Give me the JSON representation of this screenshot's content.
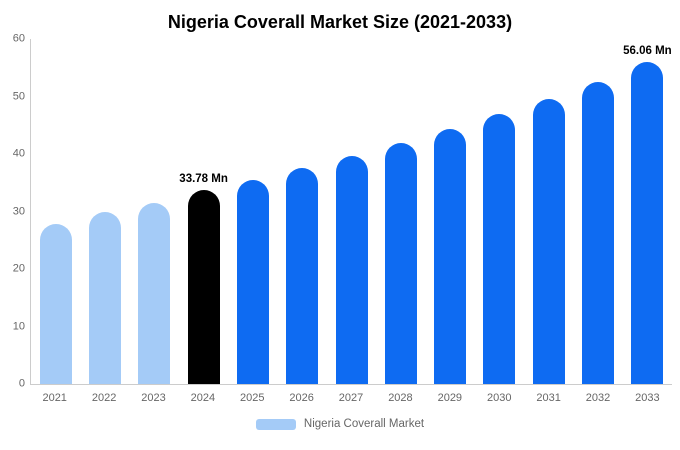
{
  "title": "Nigeria Coverall Market Size (2021-2033)",
  "legend": {
    "label": "Nigeria Coverall Market",
    "swatch_color": "#a4cbf7"
  },
  "colors": {
    "light_blue": "#a4cbf7",
    "blue": "#0e6bf2",
    "black": "#000000",
    "axis_line": "#cccccc",
    "tick_text": "#666666"
  },
  "chart_data": {
    "type": "bar",
    "title": "Nigeria Coverall Market Size (2021-2033)",
    "xlabel": "",
    "ylabel": "",
    "categories": [
      "2021",
      "2022",
      "2023",
      "2024",
      "2025",
      "2026",
      "2027",
      "2028",
      "2029",
      "2030",
      "2031",
      "2032",
      "2033"
    ],
    "values": [
      27.8,
      29.9,
      31.4,
      33.78,
      35.5,
      37.5,
      39.7,
      41.9,
      44.3,
      46.9,
      49.6,
      52.5,
      56.06
    ],
    "bar_colors": [
      "light_blue",
      "light_blue",
      "light_blue",
      "black",
      "blue",
      "blue",
      "blue",
      "blue",
      "blue",
      "blue",
      "blue",
      "blue",
      "blue"
    ],
    "point_labels": [
      "",
      "",
      "",
      "33.78 Mn",
      "",
      "",
      "",
      "",
      "",
      "",
      "",
      "",
      "56.06 Mn"
    ],
    "ylim": [
      0,
      60
    ],
    "yticks": [
      0,
      10,
      20,
      30,
      40,
      50,
      60
    ],
    "grid": false,
    "legend_position": "bottom"
  }
}
